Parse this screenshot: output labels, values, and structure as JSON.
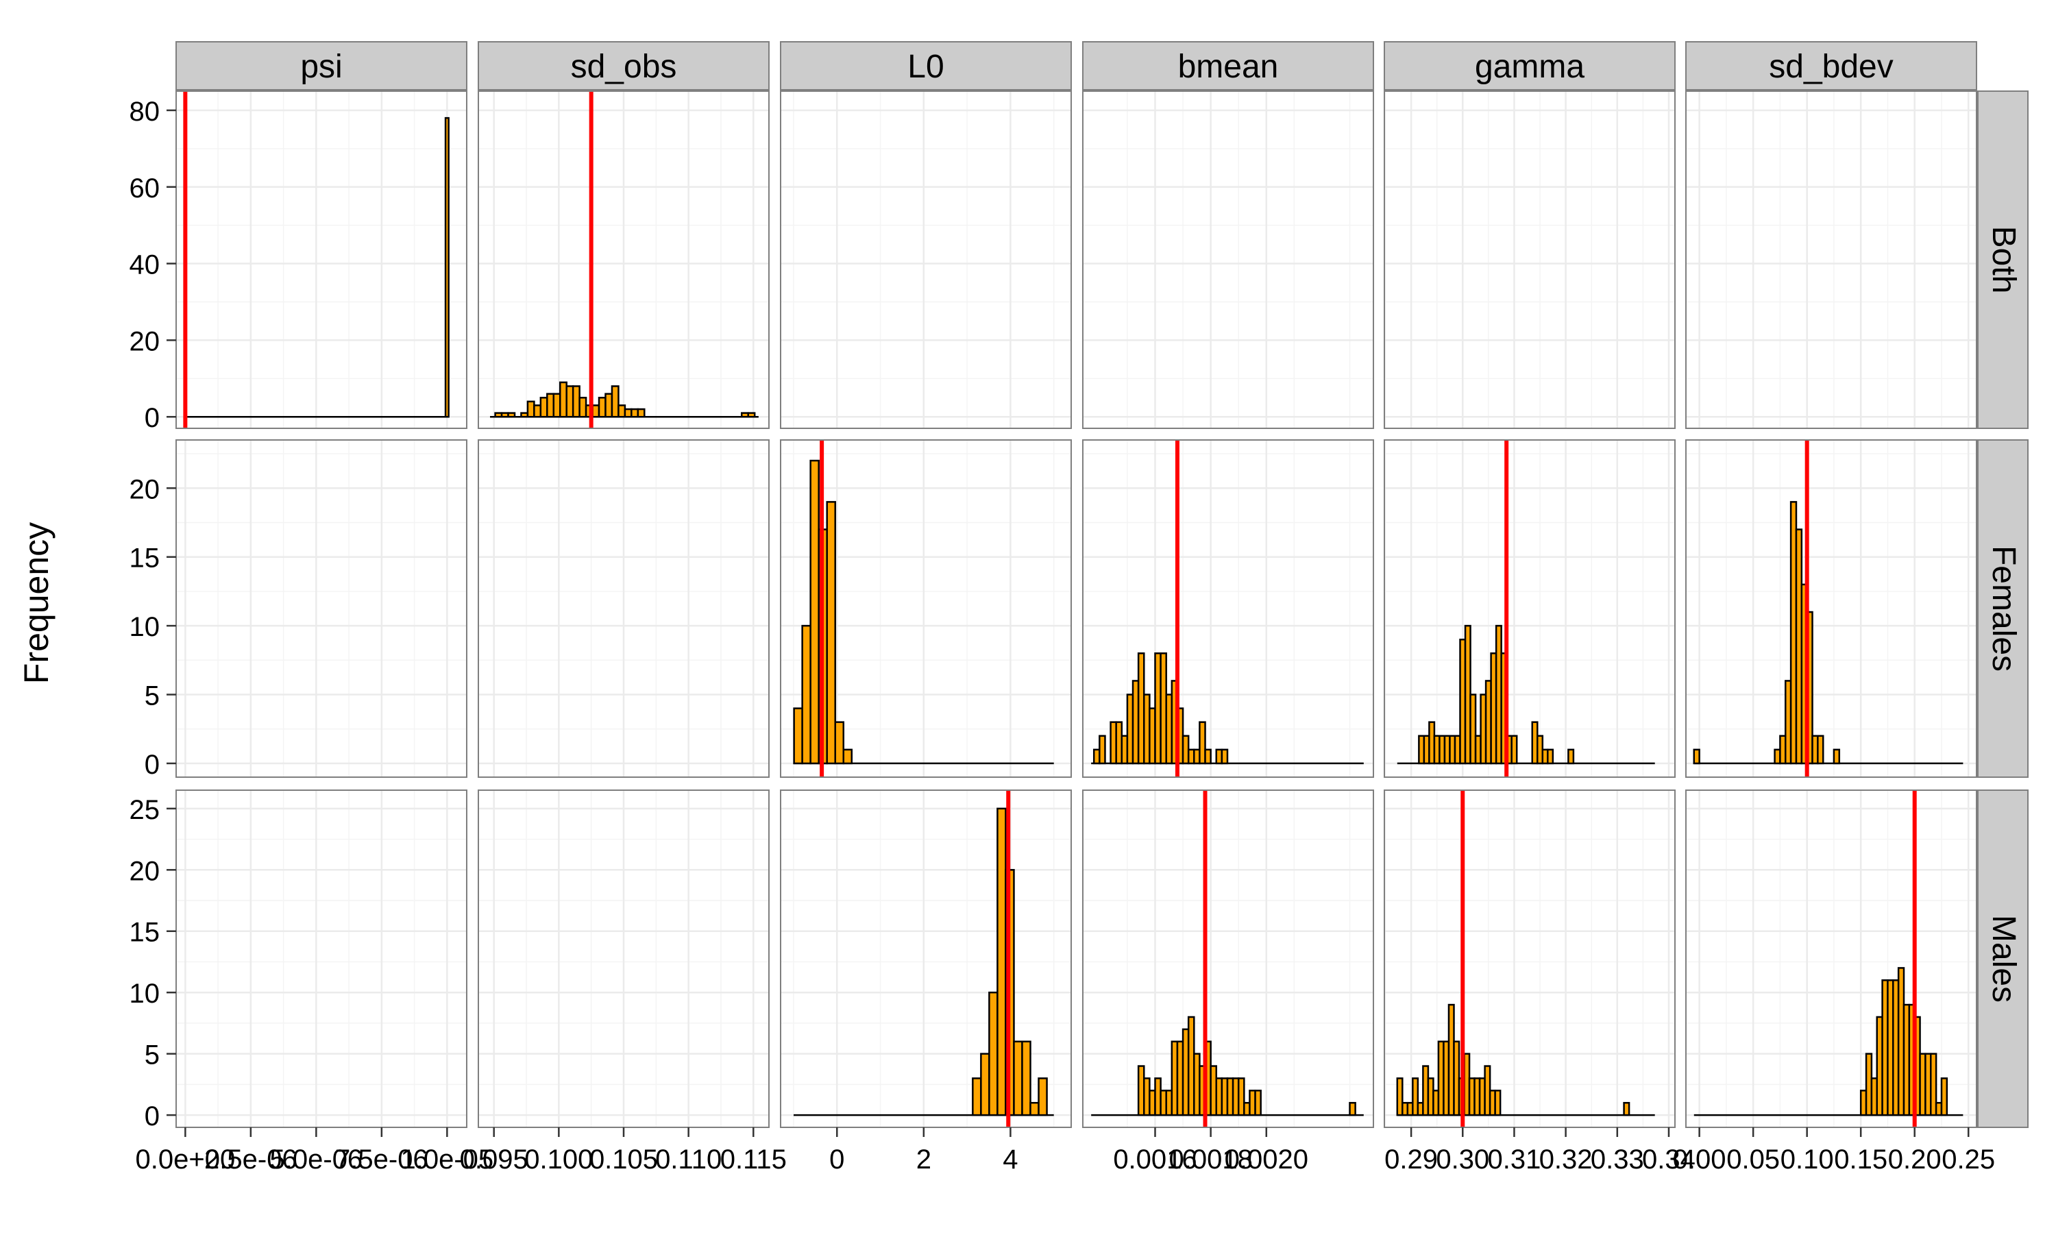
{
  "chart_data": {
    "type": "bar",
    "chart_kind": "faceted-histogram",
    "ylabel": "Frequency",
    "columns": [
      "psi",
      "sd_obs",
      "L0",
      "bmean",
      "gamma",
      "sd_bdev"
    ],
    "rows": [
      "Both",
      "Females",
      "Males"
    ],
    "colors": {
      "bar_fill": "#FFA500",
      "bar_stroke": "#000000",
      "reference_line": "#FF0000",
      "strip_bg": "#CCCCCC",
      "grid": "#EBEBEB"
    },
    "grid": true,
    "row_axes": [
      {
        "row": "Both",
        "ylim": [
          -3,
          85
        ],
        "ticks": [
          "0",
          "20",
          "40",
          "60",
          "80"
        ],
        "tick_values": [
          0,
          20,
          40,
          60,
          80
        ]
      },
      {
        "row": "Females",
        "ylim": [
          -1,
          23.5
        ],
        "ticks": [
          "0",
          "5",
          "10",
          "15",
          "20"
        ],
        "tick_values": [
          0,
          5,
          10,
          15,
          20
        ]
      },
      {
        "row": "Males",
        "ylim": [
          -1,
          26.5
        ],
        "ticks": [
          "0",
          "5",
          "10",
          "15",
          "20",
          "25"
        ],
        "tick_values": [
          0,
          5,
          10,
          15,
          20,
          25
        ]
      }
    ],
    "column_axes": [
      {
        "column": "psi",
        "xlim": [
          -3.5e-07,
          1.075e-05
        ],
        "ticks": [
          "0.0e+00",
          "2.5e-06",
          "5.0e-06",
          "7.5e-06",
          "1.0e-05"
        ],
        "tick_values": [
          0,
          2.5e-06,
          5e-06,
          7.5e-06,
          1e-05
        ]
      },
      {
        "column": "sd_obs",
        "xlim": [
          0.0938,
          0.1162
        ],
        "ticks": [
          "0.095",
          "0.100",
          "0.105",
          "0.110",
          "0.115"
        ],
        "tick_values": [
          0.095,
          0.1,
          0.105,
          0.11,
          0.115
        ]
      },
      {
        "column": "L0",
        "xlim": [
          -1.3,
          5.4
        ],
        "ticks": [
          "0",
          "2",
          "4"
        ],
        "tick_values": [
          0,
          2,
          4
        ]
      },
      {
        "column": "bmean",
        "xlim": [
          0.00134,
          0.002385
        ],
        "ticks": [
          "0.0016",
          "0.0018",
          "0.0020"
        ],
        "tick_values": [
          0.0016,
          0.0018,
          0.002
        ]
      },
      {
        "column": "gamma",
        "xlim": [
          0.2848,
          0.3412
        ],
        "ticks": [
          "0.29",
          "0.30",
          "0.31",
          "0.32",
          "0.33",
          "0.34"
        ],
        "tick_values": [
          0.29,
          0.3,
          0.31,
          0.32,
          0.33,
          0.34
        ]
      },
      {
        "column": "sd_bdev",
        "xlim": [
          -0.0125,
          0.2575
        ],
        "ticks": [
          "0.00",
          "0.05",
          "0.10",
          "0.15",
          "0.20",
          "0.25"
        ],
        "tick_values": [
          0,
          0.05,
          0.1,
          0.15,
          0.2,
          0.25
        ]
      }
    ],
    "panels": [
      {
        "column": "psi",
        "row": "Both",
        "baseline": [
          0,
          1e-05
        ],
        "bin_width": 1.2e-07,
        "bin_starts": [
          9.94e-06
        ],
        "counts": [
          78
        ],
        "reference": 0
      },
      {
        "column": "sd_obs",
        "row": "Both",
        "baseline": [
          0.0947,
          0.1154
        ],
        "bin_width": 0.0005,
        "bin_starts": [
          0.0951,
          0.0956,
          0.0961,
          0.0966,
          0.0971,
          0.0976,
          0.0981,
          0.0986,
          0.0991,
          0.0996,
          0.1001,
          0.1006,
          0.1011,
          0.1016,
          0.1021,
          0.1026,
          0.1031,
          0.1036,
          0.1041,
          0.1046,
          0.1051,
          0.1056,
          0.1061,
          0.1066,
          0.1071,
          0.1076,
          0.1081,
          0.1086,
          0.1091,
          0.1096,
          0.1101,
          0.1106,
          0.1111,
          0.1116,
          0.1121,
          0.1126,
          0.1131,
          0.1136,
          0.1141,
          0.1146,
          0.1151
        ],
        "counts": [
          1,
          1,
          1,
          0,
          1,
          4,
          3,
          5,
          6,
          6,
          9,
          8,
          8,
          5,
          3,
          3,
          5,
          6,
          8,
          3,
          2,
          2,
          2,
          0,
          0,
          0,
          0,
          0,
          0,
          0,
          0,
          0,
          0,
          0,
          0,
          0,
          0,
          0,
          1,
          1,
          0
        ],
        "reference": 0.1025
      },
      {
        "column": "sd_obs",
        "row": "Females",
        "bin_starts": [],
        "counts": []
      },
      {
        "column": "sd_obs",
        "row": "Males",
        "bin_starts": [],
        "counts": []
      },
      {
        "column": "psi",
        "row": "Females",
        "bin_starts": [],
        "counts": []
      },
      {
        "column": "psi",
        "row": "Males",
        "bin_starts": [],
        "counts": []
      },
      {
        "column": "L0",
        "row": "Both",
        "bin_starts": [],
        "counts": []
      },
      {
        "column": "bmean",
        "row": "Both",
        "bin_starts": [],
        "counts": []
      },
      {
        "column": "gamma",
        "row": "Both",
        "bin_starts": [],
        "counts": []
      },
      {
        "column": "sd_bdev",
        "row": "Both",
        "bin_starts": [],
        "counts": []
      },
      {
        "column": "L0",
        "row": "Females",
        "baseline": [
          -1.0,
          5.0
        ],
        "bin_width": 0.19,
        "bin_starts": [
          -0.99,
          -0.8,
          -0.61,
          -0.42,
          -0.23,
          -0.04,
          0.15
        ],
        "counts": [
          4,
          10,
          22,
          17,
          19,
          3,
          1
        ],
        "reference": -0.35
      },
      {
        "column": "L0",
        "row": "Males",
        "baseline": [
          -1.0,
          5.0
        ],
        "bin_width": 0.19,
        "bin_starts": [
          3.13,
          3.32,
          3.51,
          3.7,
          3.89,
          4.08,
          4.27,
          4.46,
          4.65,
          4.84
        ],
        "counts": [
          3,
          5,
          10,
          25,
          20,
          6,
          6,
          1,
          3,
          0
        ],
        "reference": 3.95
      },
      {
        "column": "bmean",
        "row": "Females",
        "baseline": [
          0.00137,
          0.00235
        ],
        "bin_width": 2e-05,
        "bin_starts": [
          0.00138,
          0.0014,
          0.00142,
          0.00144,
          0.00146,
          0.00148,
          0.0015,
          0.00152,
          0.00154,
          0.00156,
          0.00158,
          0.0016,
          0.00162,
          0.00164,
          0.00166,
          0.00168,
          0.0017,
          0.00172,
          0.00174,
          0.00176,
          0.00178,
          0.0018,
          0.00182,
          0.00184,
          0.00186,
          0.00188,
          0.0019,
          0.00192,
          0.00194,
          0.00196,
          0.00198,
          0.002,
          0.00202
        ],
        "counts": [
          1,
          2,
          0,
          3,
          3,
          2,
          5,
          6,
          8,
          5,
          4,
          8,
          8,
          5,
          6,
          4,
          2,
          1,
          1,
          3,
          1,
          0,
          1,
          1,
          0,
          0,
          0,
          0,
          0,
          0,
          0,
          0,
          0
        ],
        "reference": 0.00168
      },
      {
        "column": "bmean",
        "row": "Males",
        "baseline": [
          0.00137,
          0.00235
        ],
        "bin_width": 2e-05,
        "bin_starts": [
          0.00154,
          0.00156,
          0.00158,
          0.0016,
          0.00162,
          0.00164,
          0.00166,
          0.00168,
          0.0017,
          0.00172,
          0.00174,
          0.00176,
          0.00178,
          0.0018,
          0.00182,
          0.00184,
          0.00186,
          0.00188,
          0.0019,
          0.00192,
          0.00194,
          0.00196,
          0.00198,
          0.002,
          0.00202,
          0.00204,
          0.00206,
          0.00208,
          0.0021,
          0.00212,
          0.00214,
          0.00216,
          0.00218,
          0.0022,
          0.00222,
          0.00224,
          0.00226,
          0.00228,
          0.0023
        ],
        "counts": [
          4,
          3,
          2,
          3,
          2,
          2,
          6,
          6,
          7,
          8,
          5,
          4,
          6,
          4,
          3,
          3,
          3,
          3,
          3,
          1,
          2,
          2,
          0,
          0,
          0,
          0,
          0,
          0,
          0,
          0,
          0,
          0,
          0,
          0,
          0,
          0,
          0,
          0,
          1
        ],
        "reference": 0.00178
      },
      {
        "column": "gamma",
        "row": "Females",
        "baseline": [
          0.2873,
          0.3373
        ],
        "bin_width": 0.001,
        "bin_starts": [
          0.2915,
          0.2925,
          0.2935,
          0.2945,
          0.2955,
          0.2965,
          0.2975,
          0.2985,
          0.2995,
          0.3005,
          0.3015,
          0.3025,
          0.3035,
          0.3045,
          0.3055,
          0.3065,
          0.3075,
          0.3085,
          0.3095,
          0.3105,
          0.3115,
          0.3125,
          0.3135,
          0.3145,
          0.3155,
          0.3165,
          0.3175,
          0.3185,
          0.3195,
          0.3205,
          0.3215,
          0.3225,
          0.3235,
          0.3245,
          0.3255,
          0.3265,
          0.3275,
          0.3285,
          0.3295,
          0.3305,
          0.3315,
          0.3325,
          0.3335,
          0.3345
        ],
        "counts": [
          2,
          2,
          3,
          2,
          2,
          2,
          2,
          2,
          9,
          10,
          5,
          2,
          5,
          6,
          8,
          10,
          8,
          2,
          2,
          0,
          0,
          0,
          3,
          2,
          1,
          1,
          0,
          0,
          0,
          1,
          0,
          0,
          0,
          0,
          0,
          0,
          0,
          0,
          0,
          0,
          0,
          0,
          0,
          0
        ],
        "reference": 0.3085
      },
      {
        "column": "gamma",
        "row": "Males",
        "baseline": [
          0.2873,
          0.3373
        ],
        "bin_width": 0.001,
        "bin_starts": [
          0.2873,
          0.2883,
          0.2893,
          0.2903,
          0.2913,
          0.2923,
          0.2933,
          0.2943,
          0.2953,
          0.2963,
          0.2973,
          0.2983,
          0.2993,
          0.3003,
          0.3013,
          0.3023,
          0.3033,
          0.3043,
          0.3053,
          0.3063,
          0.3073,
          0.3083,
          0.3093,
          0.3103,
          0.3113,
          0.3123,
          0.3133,
          0.3143,
          0.3153,
          0.3163,
          0.3173,
          0.3183,
          0.3193,
          0.3203,
          0.3213,
          0.3223,
          0.3233,
          0.3243,
          0.3253,
          0.3263,
          0.3273,
          0.3283,
          0.3293,
          0.3303,
          0.3313
        ],
        "counts": [
          3,
          1,
          1,
          3,
          1,
          4,
          3,
          2,
          6,
          6,
          9,
          6,
          3,
          5,
          3,
          3,
          3,
          4,
          2,
          2,
          0,
          0,
          0,
          0,
          0,
          0,
          0,
          0,
          0,
          0,
          0,
          0,
          0,
          0,
          0,
          0,
          0,
          0,
          0,
          0,
          0,
          0,
          0,
          0,
          1
        ],
        "reference": 0.3
      },
      {
        "column": "sd_bdev",
        "row": "Females",
        "baseline": [
          -0.005,
          0.245
        ],
        "bin_width": 0.005,
        "bin_starts": [
          -0.005,
          0.0,
          0.005,
          0.01,
          0.015,
          0.02,
          0.025,
          0.03,
          0.035,
          0.04,
          0.045,
          0.05,
          0.055,
          0.06,
          0.065,
          0.07,
          0.075,
          0.08,
          0.085,
          0.09,
          0.095,
          0.1,
          0.105,
          0.11,
          0.115,
          0.12,
          0.125
        ],
        "counts": [
          1,
          0,
          0,
          0,
          0,
          0,
          0,
          0,
          0,
          0,
          0,
          0,
          0,
          0,
          0,
          1,
          2,
          6,
          19,
          17,
          13,
          11,
          2,
          2,
          0,
          0,
          1
        ],
        "reference": 0.1
      },
      {
        "column": "sd_bdev",
        "row": "Males",
        "baseline": [
          -0.005,
          0.245
        ],
        "bin_width": 0.005,
        "bin_starts": [
          0.15,
          0.155,
          0.16,
          0.165,
          0.17,
          0.175,
          0.18,
          0.185,
          0.19,
          0.195,
          0.2,
          0.205,
          0.21,
          0.215,
          0.22,
          0.225,
          0.23
        ],
        "counts": [
          2,
          5,
          3,
          8,
          11,
          11,
          11,
          12,
          9,
          9,
          8,
          5,
          5,
          5,
          1,
          3,
          0
        ],
        "reference": 0.2
      }
    ]
  }
}
